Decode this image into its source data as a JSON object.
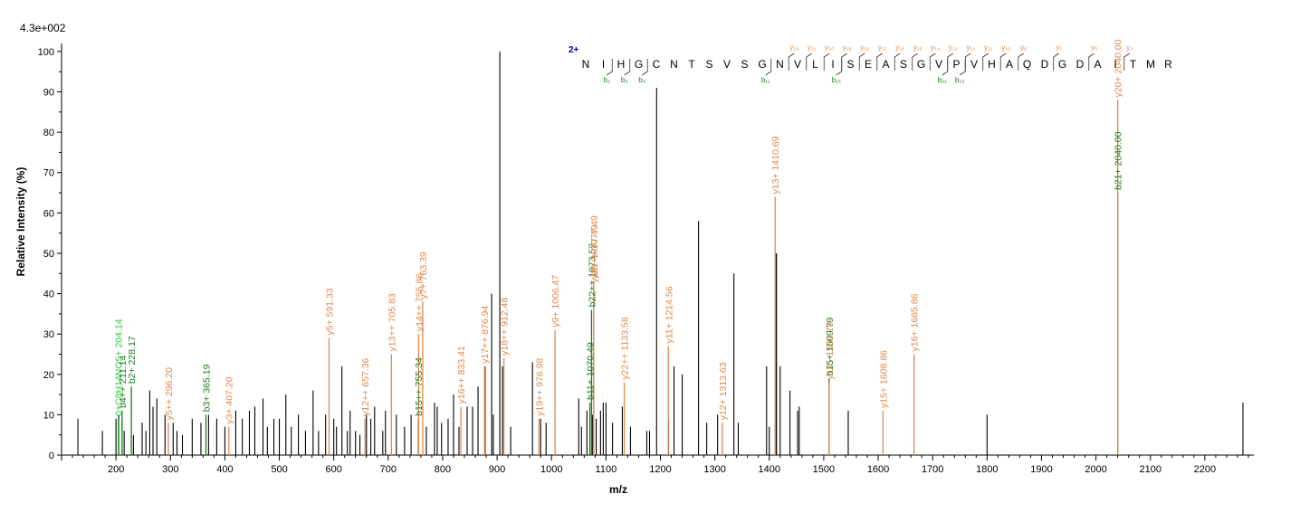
{
  "scale_label": "4.3e+002",
  "charge_label": "2+",
  "colors": {
    "unassigned": "#000000",
    "y_ion": "#e08a4f",
    "b_ion": "#1f7a1f",
    "neutral": "#2ecc40",
    "charge": "#0000aa"
  },
  "peptide": {
    "residues": [
      "N",
      "I",
      "H",
      "G",
      "C",
      "N",
      "T",
      "S",
      "V",
      "S",
      "G",
      "N",
      "V",
      "L",
      "I",
      "S",
      "E",
      "A",
      "S",
      "G",
      "V",
      "P",
      "V",
      "H",
      "A",
      "Q",
      "D",
      "G",
      "D",
      "A",
      "I",
      "T",
      "M",
      "R"
    ],
    "b_marks": [
      {
        "after": 2,
        "label": "b₂"
      },
      {
        "after": 3,
        "label": "b₃"
      },
      {
        "after": 4,
        "label": "b₄"
      },
      {
        "after": 11,
        "label": "b₁₁"
      },
      {
        "after": 15,
        "label": "b₁₅"
      },
      {
        "after": 21,
        "label": "b₂₁"
      },
      {
        "after": 22,
        "label": "b₂₂"
      }
    ],
    "y_marks": [
      {
        "after": 12,
        "label": "y₂₂"
      },
      {
        "after": 13,
        "label": "y₂₁"
      },
      {
        "after": 14,
        "label": "y₂₀"
      },
      {
        "after": 15,
        "label": "y₁₉"
      },
      {
        "after": 16,
        "label": "y₁₈"
      },
      {
        "after": 17,
        "label": "y₁₇"
      },
      {
        "after": 18,
        "label": "y₁₆"
      },
      {
        "after": 19,
        "label": "y₁₅"
      },
      {
        "after": 20,
        "label": "y₁₄"
      },
      {
        "after": 21,
        "label": "y₁₃"
      },
      {
        "after": 22,
        "label": "y₁₂"
      },
      {
        "after": 23,
        "label": "y₁₁"
      },
      {
        "after": 24,
        "label": "y₁₀"
      },
      {
        "after": 25,
        "label": "y₉"
      },
      {
        "after": 27,
        "label": "y₇"
      },
      {
        "after": 29,
        "label": "y₅"
      },
      {
        "after": 31,
        "label": "y₃"
      }
    ]
  },
  "chart_data": {
    "type": "bar",
    "xlabel": "m/z",
    "ylabel": "Relative Intensity (%)",
    "xlim": [
      100,
      2290
    ],
    "ylim": [
      0,
      102
    ],
    "x_ticks": [
      200,
      300,
      400,
      500,
      600,
      700,
      800,
      900,
      1000,
      1100,
      1200,
      1300,
      1400,
      1500,
      1600,
      1700,
      1800,
      1900,
      2000,
      2100,
      2200
    ],
    "y_ticks": [
      0,
      10,
      20,
      30,
      40,
      50,
      60,
      70,
      80,
      90,
      100
    ],
    "unassigned_peaks": [
      [
        130,
        9
      ],
      [
        175,
        6
      ],
      [
        200,
        9
      ],
      [
        205,
        10
      ],
      [
        215,
        6
      ],
      [
        232,
        5
      ],
      [
        248,
        8
      ],
      [
        255,
        6
      ],
      [
        262,
        16
      ],
      [
        268,
        12
      ],
      [
        275,
        14
      ],
      [
        290,
        10
      ],
      [
        305,
        8
      ],
      [
        312,
        6
      ],
      [
        322,
        5
      ],
      [
        340,
        9
      ],
      [
        356,
        8
      ],
      [
        370,
        10
      ],
      [
        385,
        9
      ],
      [
        400,
        7
      ],
      [
        420,
        11
      ],
      [
        432,
        9
      ],
      [
        445,
        11
      ],
      [
        455,
        12
      ],
      [
        470,
        14
      ],
      [
        478,
        7
      ],
      [
        490,
        9
      ],
      [
        500,
        9
      ],
      [
        512,
        15
      ],
      [
        522,
        7
      ],
      [
        535,
        10
      ],
      [
        548,
        6
      ],
      [
        562,
        16
      ],
      [
        572,
        6
      ],
      [
        585,
        10
      ],
      [
        600,
        9
      ],
      [
        605,
        7
      ],
      [
        615,
        22
      ],
      [
        625,
        6
      ],
      [
        630,
        11
      ],
      [
        640,
        6
      ],
      [
        648,
        5
      ],
      [
        660,
        10
      ],
      [
        668,
        9
      ],
      [
        675,
        12
      ],
      [
        690,
        6
      ],
      [
        695,
        11
      ],
      [
        715,
        10
      ],
      [
        730,
        7
      ],
      [
        742,
        10
      ],
      [
        770,
        7
      ],
      [
        785,
        13
      ],
      [
        790,
        12
      ],
      [
        798,
        8
      ],
      [
        810,
        9
      ],
      [
        820,
        15
      ],
      [
        830,
        7
      ],
      [
        845,
        12
      ],
      [
        855,
        12
      ],
      [
        865,
        17
      ],
      [
        878,
        22
      ],
      [
        890,
        40
      ],
      [
        893,
        10
      ],
      [
        905,
        100
      ],
      [
        910,
        22
      ],
      [
        925,
        7
      ],
      [
        965,
        23
      ],
      [
        980,
        9
      ],
      [
        990,
        8
      ],
      [
        1050,
        14
      ],
      [
        1055,
        7
      ],
      [
        1065,
        11
      ],
      [
        1075,
        10
      ],
      [
        1082,
        9
      ],
      [
        1090,
        11
      ],
      [
        1095,
        13
      ],
      [
        1100,
        13
      ],
      [
        1112,
        8
      ],
      [
        1130,
        12
      ],
      [
        1145,
        7
      ],
      [
        1175,
        6
      ],
      [
        1180,
        6
      ],
      [
        1193,
        91
      ],
      [
        1215,
        9
      ],
      [
        1225,
        22
      ],
      [
        1240,
        20
      ],
      [
        1270,
        58
      ],
      [
        1285,
        8
      ],
      [
        1305,
        10
      ],
      [
        1335,
        45
      ],
      [
        1343,
        8
      ],
      [
        1395,
        22
      ],
      [
        1400,
        7
      ],
      [
        1420,
        22
      ],
      [
        1438,
        16
      ],
      [
        1452,
        11
      ],
      [
        1455,
        12
      ],
      [
        1545,
        11
      ],
      [
        1800,
        10
      ],
      [
        2270,
        13
      ]
    ],
    "annotated_peaks": [
      {
        "x": 204.14,
        "y": 9,
        "label": "0+C8H14NO5+ 204.14",
        "kind": "neutral"
      },
      {
        "x": 211.14,
        "y": 11,
        "label": "b4++ 211.14",
        "kind": "b"
      },
      {
        "x": 228.17,
        "y": 17,
        "label": "b2+ 228.17",
        "kind": "b"
      },
      {
        "x": 296.2,
        "y": 8,
        "label": "y5++ 296.20",
        "kind": "y"
      },
      {
        "x": 365.19,
        "y": 10,
        "label": "b3+ 365.19",
        "kind": "b"
      },
      {
        "x": 407.2,
        "y": 7,
        "label": "y3+ 407.20",
        "kind": "y"
      },
      {
        "x": 591.33,
        "y": 29,
        "label": "y5+ 591.33",
        "kind": "y"
      },
      {
        "x": 657.36,
        "y": 9,
        "label": "y12++ 657.36",
        "kind": "y"
      },
      {
        "x": 705.83,
        "y": 25,
        "label": "y13++ 705.83",
        "kind": "y"
      },
      {
        "x": 755.34,
        "y": 9,
        "label": "b15++ 755.34",
        "kind": "b"
      },
      {
        "x": 755.86,
        "y": 30,
        "label": "y14++ 755.86",
        "kind": "y"
      },
      {
        "x": 763.39,
        "y": 38,
        "label": "y7+ 763.39",
        "kind": "y"
      },
      {
        "x": 833.41,
        "y": 12,
        "label": "y16++ 833.41",
        "kind": "y"
      },
      {
        "x": 876.94,
        "y": 22,
        "label": "y17++ 876.94",
        "kind": "y"
      },
      {
        "x": 912.48,
        "y": 24,
        "label": "y18++ 912.48",
        "kind": "y"
      },
      {
        "x": 976.98,
        "y": 9,
        "label": "y19++ 976.98",
        "kind": "y"
      },
      {
        "x": 1006.47,
        "y": 31,
        "label": "y9+ 1006.47",
        "kind": "y"
      },
      {
        "x": 1070.49,
        "y": 13,
        "label": "b11+ 1070.49",
        "kind": "b"
      },
      {
        "x": 1073.5,
        "y": 36,
        "label": "b22++ 1073.52",
        "kind": "b"
      },
      {
        "x": 1077.49,
        "y": 42,
        "label": "y10+ 1077.49",
        "kind": "y"
      },
      {
        "x": 1077.49,
        "y": 43,
        "label": "y21++ 1077.49",
        "kind": "y"
      },
      {
        "x": 1133.58,
        "y": 18,
        "label": "y22++ 1133.58",
        "kind": "y"
      },
      {
        "x": 1214.56,
        "y": 27,
        "label": "y11+ 1214.56",
        "kind": "y"
      },
      {
        "x": 1313.63,
        "y": 8,
        "label": "y12+ 1313.63",
        "kind": "y"
      },
      {
        "x": 1410.69,
        "y": 64,
        "label": "y13+ 1410.69",
        "kind": "y"
      },
      {
        "x": 1413,
        "y": 50,
        "label": "",
        "kind": "unassigned"
      },
      {
        "x": 1509.79,
        "y": 19,
        "label": "b15+ 1509.79",
        "kind": "b"
      },
      {
        "x": 1509.79,
        "y": 18,
        "label": "y14+ 1509.79",
        "kind": "y"
      },
      {
        "x": 1608.86,
        "y": 11,
        "label": "y15+ 1608.86",
        "kind": "y"
      },
      {
        "x": 1665.86,
        "y": 25,
        "label": "y16+ 1665.86",
        "kind": "y"
      },
      {
        "x": 2040.0,
        "y": 65,
        "label": "b21+ 2040.00",
        "kind": "b"
      },
      {
        "x": 2040.0,
        "y": 88,
        "label": "y20+ 2040.00",
        "kind": "y"
      }
    ]
  }
}
